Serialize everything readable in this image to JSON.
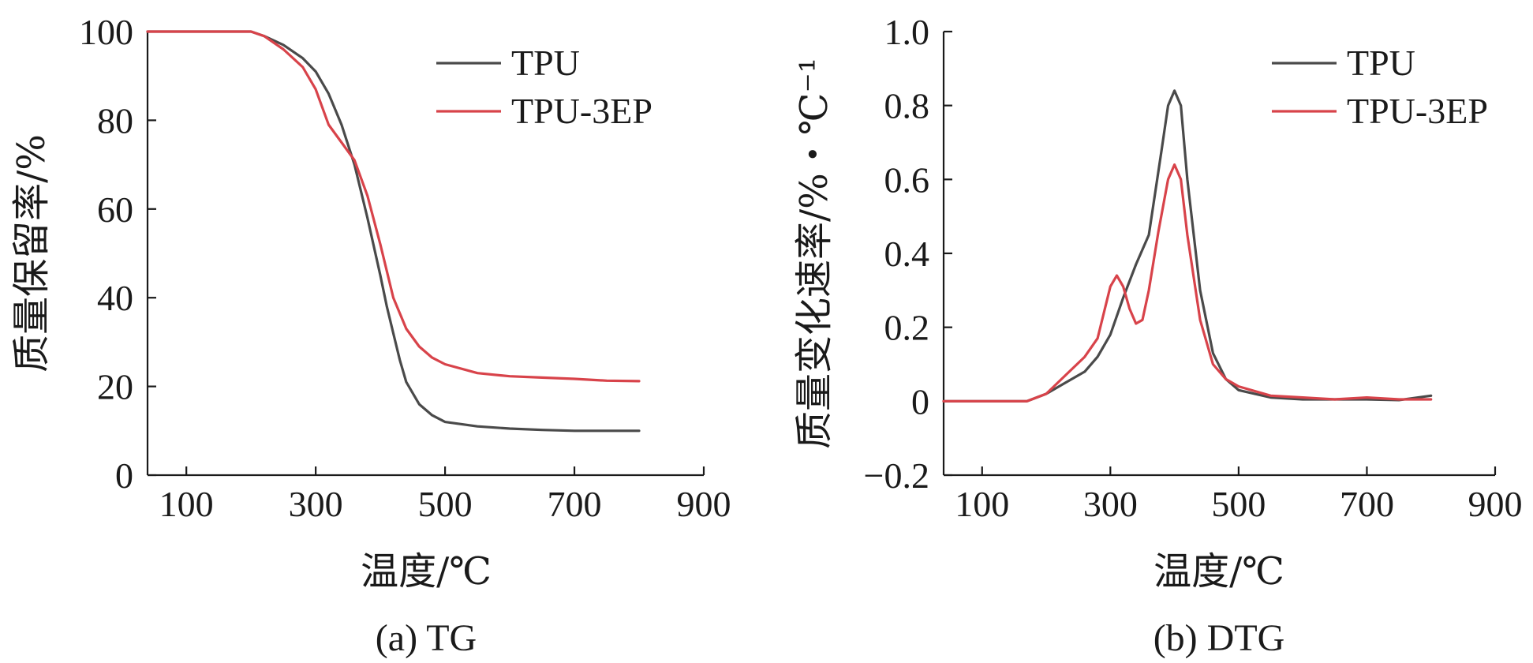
{
  "chart_data": [
    {
      "type": "line",
      "caption": "(a) TG",
      "xlabel": "温度/℃",
      "ylabel": "质量保留率/%",
      "xlim": [
        40,
        900
      ],
      "ylim": [
        0,
        100
      ],
      "xticks": [
        100,
        300,
        500,
        700,
        900
      ],
      "yticks": [
        0,
        20,
        40,
        60,
        80,
        100
      ],
      "legend_position": "top-right",
      "grid": false,
      "series": [
        {
          "name": "TPU",
          "color": "#4a4a4a",
          "x": [
            40,
            100,
            150,
            200,
            220,
            250,
            280,
            300,
            320,
            340,
            360,
            380,
            400,
            410,
            420,
            430,
            440,
            460,
            480,
            500,
            550,
            600,
            650,
            700,
            750,
            800
          ],
          "y": [
            100,
            100,
            100,
            100,
            99,
            97,
            94,
            91,
            86,
            79,
            70,
            58,
            45,
            38,
            32,
            26,
            21,
            16,
            13.5,
            12,
            11,
            10.5,
            10.2,
            10,
            10,
            10
          ]
        },
        {
          "name": "TPU-3EP",
          "color": "#d8434a",
          "x": [
            40,
            100,
            150,
            200,
            220,
            250,
            280,
            300,
            320,
            340,
            360,
            380,
            400,
            420,
            440,
            460,
            480,
            500,
            550,
            600,
            650,
            700,
            750,
            800
          ],
          "y": [
            100,
            100,
            100,
            100,
            99,
            96,
            92,
            87,
            79,
            75,
            71,
            63,
            52,
            40,
            33,
            29,
            26.5,
            25,
            23,
            22.3,
            22,
            21.7,
            21.3,
            21.2
          ]
        }
      ]
    },
    {
      "type": "line",
      "caption": "(b) DTG",
      "xlabel": "温度/℃",
      "ylabel": "质量变化速率/%・℃⁻¹",
      "xlim": [
        40,
        900
      ],
      "ylim": [
        -0.2,
        1.0
      ],
      "xticks": [
        100,
        300,
        500,
        700,
        900
      ],
      "yticks": [
        -0.2,
        0,
        0.2,
        0.4,
        0.6,
        0.8,
        1.0
      ],
      "ytick_labels": [
        "−0.2",
        "0",
        "0.2",
        "0.4",
        "0.6",
        "0.8",
        "1.0"
      ],
      "legend_position": "top-right",
      "grid": false,
      "series": [
        {
          "name": "TPU",
          "color": "#4a4a4a",
          "x": [
            40,
            100,
            150,
            170,
            200,
            230,
            260,
            280,
            300,
            320,
            340,
            360,
            380,
            390,
            400,
            410,
            420,
            440,
            460,
            480,
            500,
            550,
            600,
            650,
            700,
            750,
            800
          ],
          "y": [
            0,
            0,
            0,
            0,
            0.02,
            0.05,
            0.08,
            0.12,
            0.18,
            0.28,
            0.37,
            0.45,
            0.68,
            0.8,
            0.84,
            0.8,
            0.6,
            0.3,
            0.13,
            0.06,
            0.03,
            0.01,
            0.005,
            0.005,
            0.005,
            0.003,
            0.015
          ]
        },
        {
          "name": "TPU-3EP",
          "color": "#d8434a",
          "x": [
            40,
            100,
            150,
            170,
            200,
            230,
            260,
            280,
            300,
            310,
            320,
            330,
            340,
            350,
            360,
            375,
            390,
            400,
            410,
            420,
            440,
            460,
            480,
            500,
            550,
            600,
            650,
            700,
            750,
            800
          ],
          "y": [
            0,
            0,
            0,
            0,
            0.02,
            0.07,
            0.12,
            0.17,
            0.31,
            0.34,
            0.31,
            0.25,
            0.21,
            0.22,
            0.3,
            0.46,
            0.6,
            0.64,
            0.6,
            0.45,
            0.22,
            0.1,
            0.06,
            0.04,
            0.015,
            0.01,
            0.005,
            0.01,
            0.005,
            0.005
          ]
        }
      ]
    }
  ]
}
